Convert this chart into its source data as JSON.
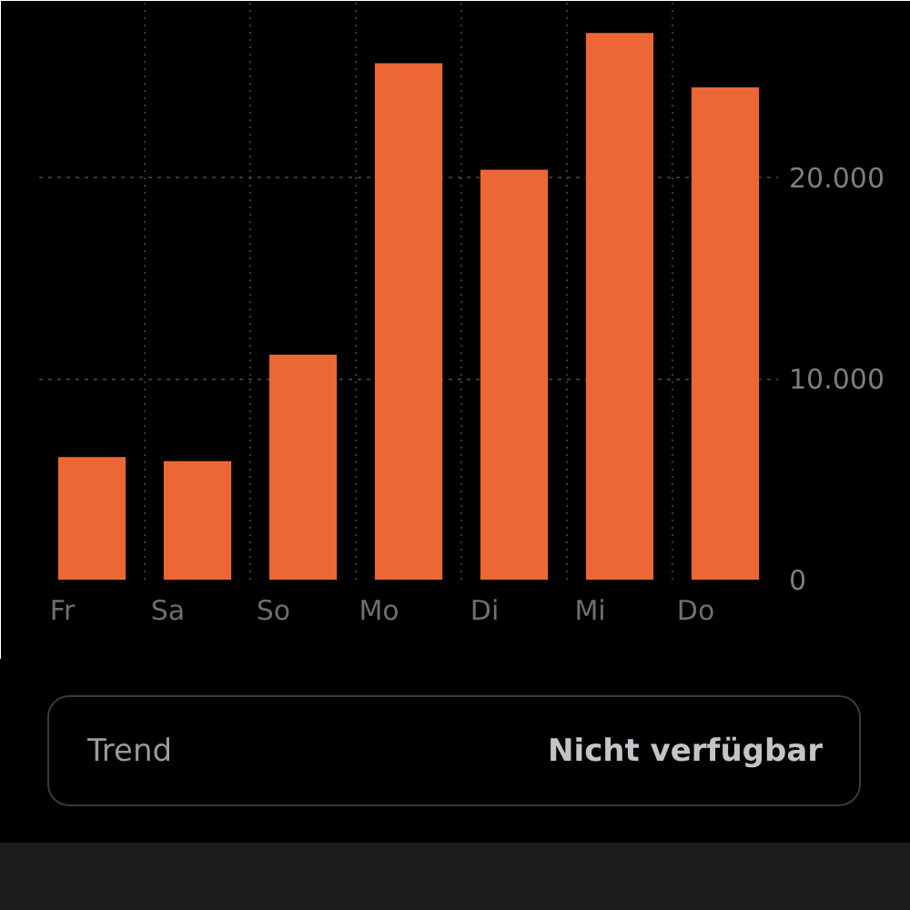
{
  "chart_data": {
    "type": "bar",
    "categories": [
      "Fr",
      "Sa",
      "So",
      "Mo",
      "Di",
      "Mi",
      "Do"
    ],
    "values": [
      6100,
      5900,
      11200,
      25700,
      20400,
      27200,
      24500
    ],
    "color": "#ec6735",
    "ylim": [
      0,
      28800
    ],
    "yticks": [
      0,
      {
        "value": 10000,
        "label": "10.000"
      },
      {
        "value": 20000,
        "label": "20.000"
      }
    ],
    "grid": true,
    "annotations": [
      "Trend",
      "Nicht verfügbar"
    ]
  }
}
